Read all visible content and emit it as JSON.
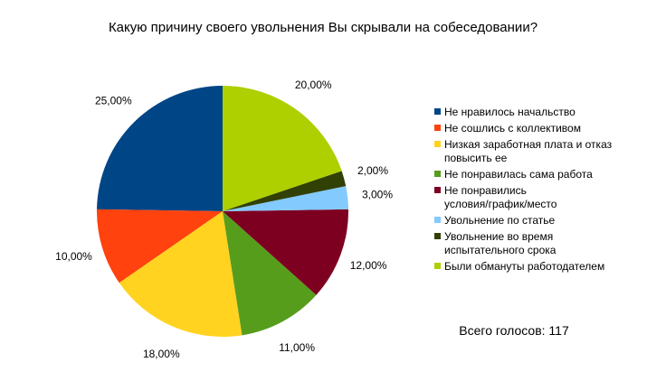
{
  "chart_data": {
    "type": "pie",
    "title": "Какую причину своего увольнения Вы скрывали на собеседовании?",
    "categories": [
      "Не нравилось начальство",
      "Не сошлись с коллективом",
      "Низкая заработная плата и отказ повысить ее",
      "Не понравилась сама работа",
      "Не понравились условия/график/место",
      "Увольнение по статье",
      "Увольнение во время испытательного срока",
      "Были обмануты работодателем"
    ],
    "values": [
      25,
      10,
      18,
      11,
      12,
      3,
      2,
      20
    ],
    "value_labels": [
      "25,00%",
      "10,00%",
      "18,00%",
      "11,00%",
      "12,00%",
      "3,00%",
      "2,00%",
      "20,00%"
    ],
    "colors": [
      "#004586",
      "#ff420e",
      "#ffd320",
      "#579d1c",
      "#7e0021",
      "#83caff",
      "#314004",
      "#aecf00"
    ],
    "legend_lines": [
      [
        "Не нравилось начальство"
      ],
      [
        "Не сошлись с коллективом"
      ],
      [
        "Низкая заработная плата и отказ",
        "повысить ее"
      ],
      [
        "Не понравилась сама работа"
      ],
      [
        "Не понравились",
        "условия/график/место"
      ],
      [
        "Увольнение по статье"
      ],
      [
        "Увольнение во время",
        "испытательного срока"
      ],
      [
        "Были обмануты работодателем"
      ]
    ],
    "legend_placement": "right",
    "grid": false
  },
  "total_votes_text": "Всего голосов: 117"
}
